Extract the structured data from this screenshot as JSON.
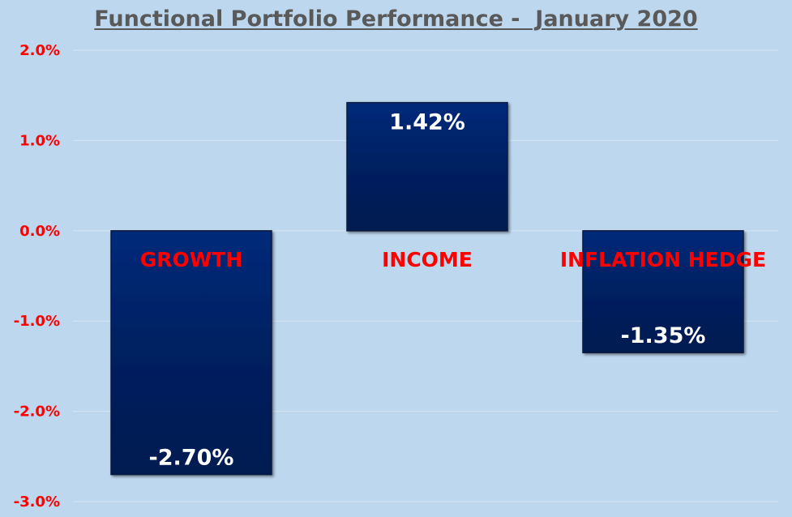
{
  "chart_data": {
    "type": "bar",
    "title": "Functional Portfolio Performance -  January 2020",
    "categories": [
      "GROWTH",
      "INCOME",
      "INFLATION HEDGE"
    ],
    "values": [
      -2.7,
      1.42,
      -1.35
    ],
    "data_labels": [
      "-2.70%",
      "1.42%",
      "-1.35%"
    ],
    "yticks": [
      2.0,
      1.0,
      0.0,
      -1.0,
      -2.0,
      -3.0
    ],
    "ytick_labels": [
      "2.0%",
      "1.0%",
      "0.0%",
      "-1.0%",
      "-2.0%",
      "-3.0%"
    ],
    "ylim": [
      -3.0,
      2.0
    ],
    "xlabel": "",
    "ylabel": "",
    "grid": true,
    "legend": "none",
    "colors": {
      "bar": "#002060",
      "background": "#bdd7ee",
      "axis_text": "#ff0000",
      "data_label": "#ffffff",
      "title": "#595959"
    }
  }
}
